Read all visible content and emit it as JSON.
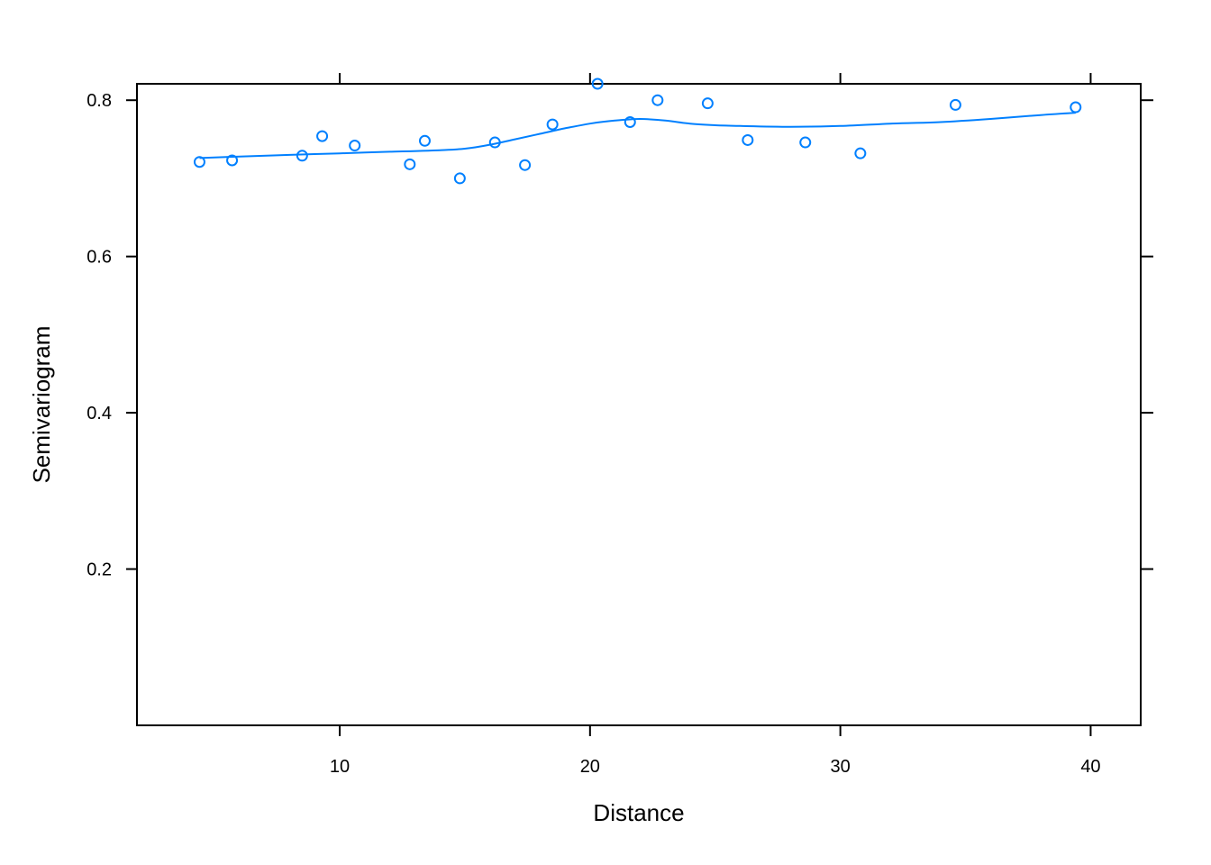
{
  "chart_data": {
    "type": "scatter",
    "title": "",
    "xlabel": "Distance",
    "ylabel": "Semivariogram",
    "xlim": [
      1.9,
      42
    ],
    "ylim": [
      0.0,
      0.821
    ],
    "xticks": [
      10,
      20,
      30,
      40
    ],
    "yticks": [
      0.2,
      0.4,
      0.6,
      0.8
    ],
    "xtick_labels": [
      "10",
      "20",
      "30",
      "40"
    ],
    "ytick_labels": [
      "0.2",
      "0.4",
      "0.6",
      "0.8"
    ],
    "grid": false,
    "point_color": "#0080ff",
    "line_color": "#0080ff",
    "series": [
      {
        "kind": "points",
        "x": [
          4.4,
          5.7,
          8.5,
          9.3,
          10.6,
          12.8,
          13.4,
          14.8,
          16.2,
          17.4,
          18.5,
          20.3,
          21.6,
          22.7,
          24.7,
          26.3,
          28.6,
          30.8,
          34.6,
          39.4
        ],
        "y": [
          0.721,
          0.723,
          0.729,
          0.754,
          0.742,
          0.718,
          0.748,
          0.7,
          0.746,
          0.717,
          0.769,
          0.821,
          0.772,
          0.8,
          0.796,
          0.749,
          0.746,
          0.732,
          0.794,
          0.791
        ]
      },
      {
        "kind": "smooth-line",
        "x": [
          4.4,
          6,
          8,
          10,
          12,
          14,
          15,
          16,
          17,
          18,
          19,
          20,
          21,
          22,
          23,
          24,
          25,
          26,
          28,
          30,
          32,
          34,
          36,
          38,
          39.4
        ],
        "y": [
          0.726,
          0.728,
          0.73,
          0.732,
          0.734,
          0.736,
          0.738,
          0.743,
          0.75,
          0.757,
          0.764,
          0.77,
          0.774,
          0.776,
          0.774,
          0.77,
          0.768,
          0.767,
          0.766,
          0.767,
          0.77,
          0.772,
          0.776,
          0.781,
          0.784
        ]
      }
    ]
  }
}
